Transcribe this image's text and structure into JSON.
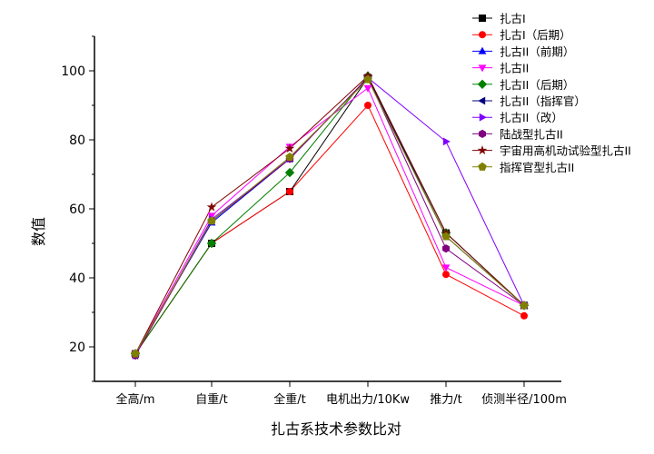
{
  "chart_data": {
    "type": "line",
    "title": "",
    "xlabel": "扎古系技术参数比对",
    "ylabel": "数值",
    "categories": [
      "全高/m",
      "自重/t",
      "全重/t",
      "电机出力/10Kw",
      "推力/t",
      "侦测半径/100m"
    ],
    "ylim": [
      10,
      110
    ],
    "yticks": [
      20,
      40,
      60,
      80,
      100
    ],
    "grid": false,
    "legend_position": "top-right",
    "series": [
      {
        "name": "扎古I",
        "color": "#000000",
        "marker": "square",
        "values": [
          18.0,
          50.0,
          65.0,
          98.0,
          53.0,
          32.0
        ]
      },
      {
        "name": "扎古I（后期）",
        "color": "#ff0000",
        "marker": "circle",
        "values": [
          18.0,
          50.0,
          65.0,
          90.0,
          41.0,
          29.0
        ]
      },
      {
        "name": "扎古II（前期）",
        "color": "#0000ff",
        "marker": "triangle-up",
        "values": [
          18.0,
          56.0,
          74.5,
          98.0,
          53.0,
          32.0
        ]
      },
      {
        "name": "扎古II",
        "color": "#ff00ff",
        "marker": "triangle-down",
        "values": [
          18.0,
          58.0,
          78.0,
          95.0,
          43.0,
          32.0
        ]
      },
      {
        "name": "扎古II（后期）",
        "color": "#008000",
        "marker": "diamond",
        "values": [
          18.0,
          50.0,
          70.5,
          98.5,
          53.0,
          32.0
        ]
      },
      {
        "name": "扎古II（指挥官）",
        "color": "#000080",
        "marker": "triangle-left",
        "values": [
          17.5,
          56.5,
          74.5,
          98.0,
          52.0,
          32.0
        ]
      },
      {
        "name": "扎古II（改）",
        "color": "#8000ff",
        "marker": "triangle-right",
        "values": [
          17.5,
          57.0,
          74.5,
          98.0,
          79.5,
          32.0
        ]
      },
      {
        "name": "陆战型扎古II",
        "color": "#800080",
        "marker": "hexagon",
        "values": [
          17.5,
          56.5,
          74.5,
          98.0,
          48.5,
          32.0
        ]
      },
      {
        "name": "宇宙用高机动试验型扎古II",
        "color": "#800000",
        "marker": "star",
        "values": [
          18.0,
          60.5,
          77.5,
          98.5,
          53.0,
          32.0
        ]
      },
      {
        "name": "指挥官型扎古II",
        "color": "#808000",
        "marker": "pentagon",
        "values": [
          18.0,
          56.5,
          75.0,
          97.5,
          52.0,
          32.0
        ]
      }
    ]
  }
}
